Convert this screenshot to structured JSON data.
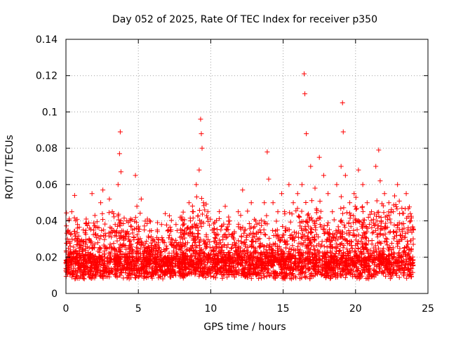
{
  "chart_data": {
    "type": "scatter",
    "title": "Day 052 of 2025, Rate Of TEC Index for receiver p350",
    "xlabel": "GPS time / hours",
    "ylabel": "ROTI / TECUs",
    "xlim": [
      0,
      25
    ],
    "ylim": [
      0,
      0.14
    ],
    "x_ticks": [
      0,
      5,
      10,
      15,
      20,
      25
    ],
    "x_tick_labels": [
      "0",
      "5",
      "10",
      "15",
      "20",
      "25"
    ],
    "y_ticks": [
      0,
      0.02,
      0.04,
      0.06,
      0.08,
      0.1,
      0.12,
      0.14
    ],
    "y_tick_labels": [
      "0",
      "0.02",
      "0.04",
      "0.06",
      "0.08",
      "0.1",
      "0.12",
      "0.14"
    ],
    "grid": true,
    "marker": "+",
    "series": [
      {
        "name": "ROTI",
        "color": "#ff0000",
        "x": [
          0.1,
          0.25,
          0.4,
          0.6,
          0.8,
          1.0,
          1.2,
          1.4,
          1.6,
          1.8,
          2.0,
          2.2,
          2.4,
          2.55,
          2.6,
          2.75,
          3.0,
          3.2,
          3.4,
          3.6,
          3.7,
          3.75,
          3.8,
          4.0,
          4.2,
          4.4,
          4.6,
          4.8,
          4.9,
          5.0,
          5.2,
          5.4,
          5.6,
          5.8,
          6.0,
          6.3,
          6.6,
          6.8,
          7.0,
          7.3,
          7.6,
          7.9,
          8.2,
          8.5,
          8.8,
          9.0,
          9.2,
          9.3,
          9.35,
          9.4,
          9.5,
          9.8,
          10.1,
          10.4,
          10.7,
          11.0,
          11.3,
          11.6,
          11.9,
          12.2,
          12.5,
          12.8,
          13.1,
          13.4,
          13.7,
          13.9,
          14.0,
          14.3,
          14.6,
          14.9,
          15.1,
          15.4,
          15.7,
          16.0,
          16.3,
          16.45,
          16.5,
          16.6,
          16.9,
          17.2,
          17.5,
          17.8,
          18.1,
          18.4,
          18.7,
          19.0,
          19.1,
          19.15,
          19.3,
          19.6,
          19.9,
          20.2,
          20.5,
          20.8,
          21.1,
          21.4,
          21.6,
          21.7,
          22.0,
          22.3,
          22.6,
          22.9,
          23.2,
          23.5,
          23.8,
          24.0
        ],
        "y": [
          0.03,
          0.022,
          0.045,
          0.054,
          0.038,
          0.02,
          0.035,
          0.041,
          0.03,
          0.055,
          0.043,
          0.028,
          0.05,
          0.057,
          0.035,
          0.025,
          0.052,
          0.045,
          0.038,
          0.06,
          0.077,
          0.089,
          0.067,
          0.03,
          0.04,
          0.025,
          0.035,
          0.065,
          0.048,
          0.03,
          0.052,
          0.02,
          0.025,
          0.018,
          0.03,
          0.022,
          0.038,
          0.028,
          0.02,
          0.03,
          0.038,
          0.042,
          0.035,
          0.05,
          0.045,
          0.06,
          0.068,
          0.096,
          0.088,
          0.08,
          0.05,
          0.045,
          0.035,
          0.028,
          0.035,
          0.048,
          0.04,
          0.03,
          0.045,
          0.057,
          0.032,
          0.05,
          0.04,
          0.035,
          0.05,
          0.078,
          0.063,
          0.05,
          0.035,
          0.055,
          0.045,
          0.06,
          0.05,
          0.055,
          0.06,
          0.121,
          0.11,
          0.088,
          0.07,
          0.058,
          0.075,
          0.065,
          0.055,
          0.045,
          0.06,
          0.07,
          0.105,
          0.089,
          0.065,
          0.05,
          0.055,
          0.068,
          0.06,
          0.05,
          0.045,
          0.07,
          0.079,
          0.062,
          0.055,
          0.05,
          0.045,
          0.06,
          0.047,
          0.055,
          0.04,
          0.035
        ]
      }
    ]
  }
}
